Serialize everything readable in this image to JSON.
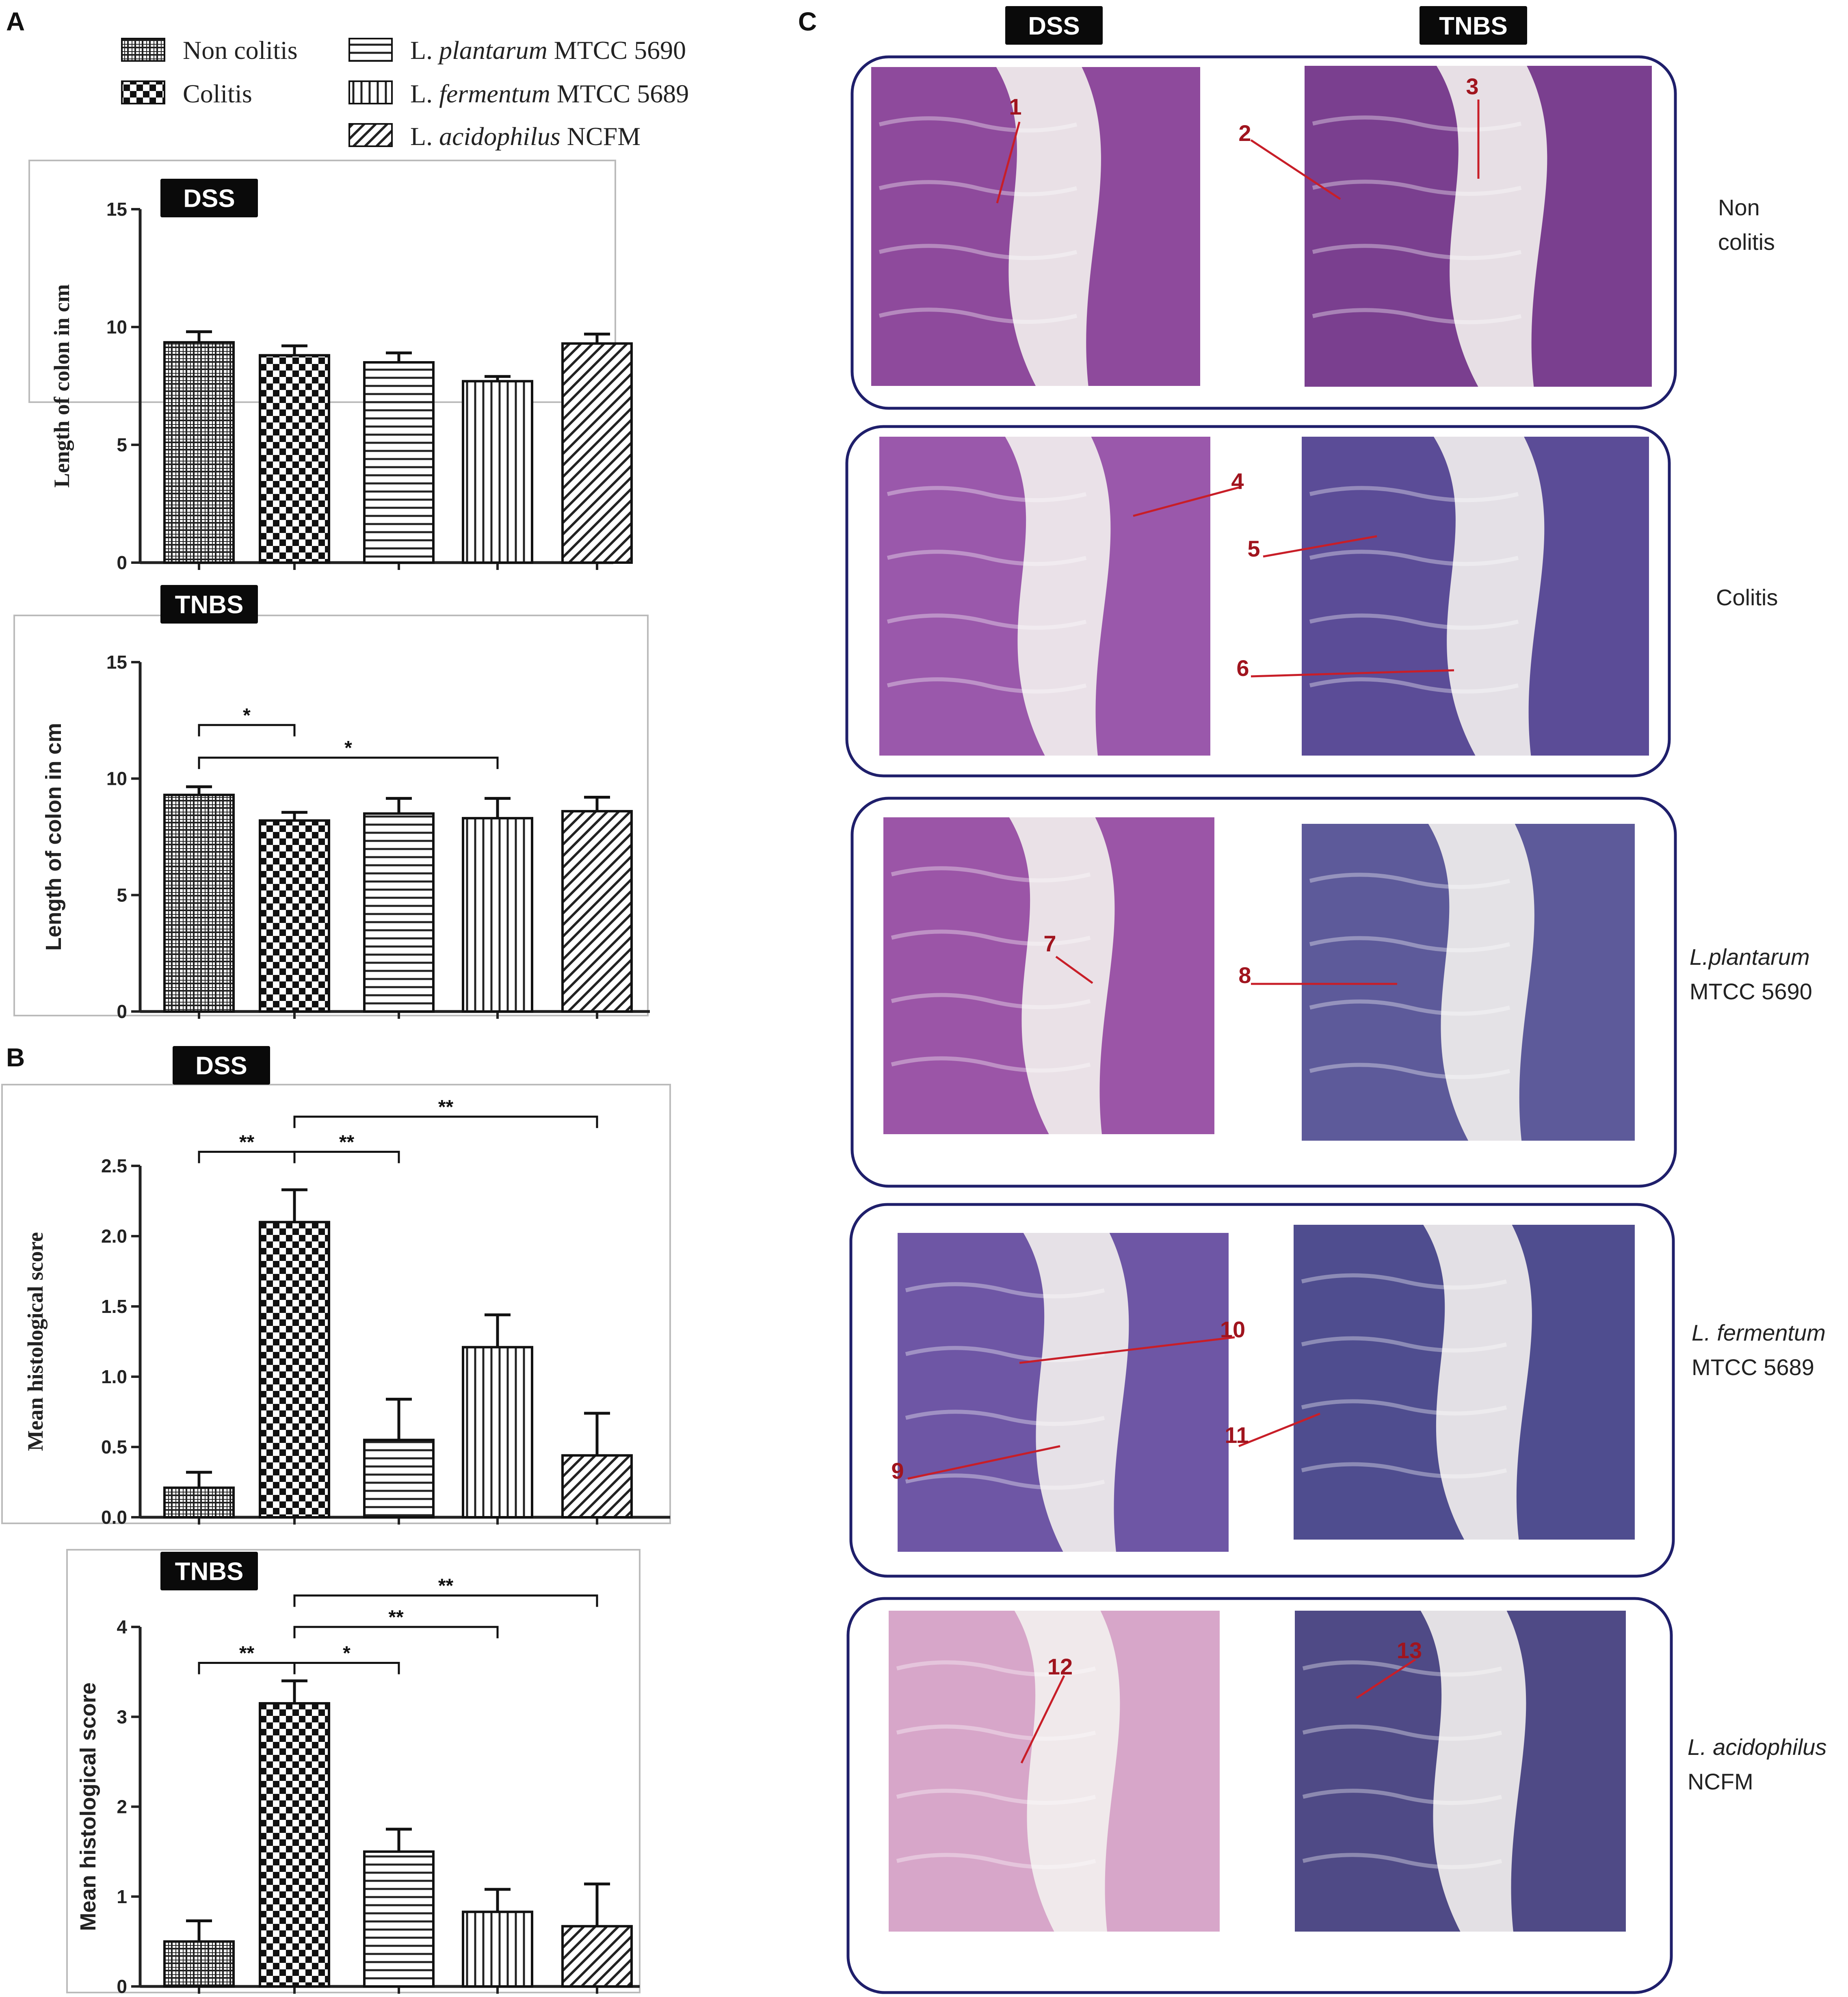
{
  "panels": {
    "A": "A",
    "B": "B",
    "C": "C"
  },
  "legend": [
    {
      "genus": "Non colitis",
      "species": "",
      "strain": "",
      "pattern": "pat-grid"
    },
    {
      "genus": "Colitis",
      "species": "",
      "strain": "",
      "pattern": "pat-check"
    },
    {
      "genus": "L.",
      "species": "plantarum",
      "strain": "MTCC 5690",
      "pattern": "pat-hlines"
    },
    {
      "genus": "L.",
      "species": "fermentum",
      "strain": "MTCC 5689",
      "pattern": "pat-vlines"
    },
    {
      "genus": "L.",
      "species": "acidophilus",
      "strain": "NCFM",
      "pattern": "pat-diag"
    }
  ],
  "chart_data": [
    {
      "id": "A-DSS",
      "type": "bar",
      "badge": "DSS",
      "ylabel": "Length of colon in cm",
      "ylim": [
        0,
        15
      ],
      "yticks": [
        "0",
        "5",
        "10",
        "15"
      ],
      "categories": [
        "Non colitis",
        "Colitis",
        "L. plantarum MTCC 5690",
        "L. fermentum MTCC 5689",
        "L. acidophilus NCFM"
      ],
      "values": [
        9.35,
        8.8,
        8.5,
        7.7,
        9.3
      ],
      "errors": [
        0.45,
        0.4,
        0.4,
        0.2,
        0.4
      ],
      "significance": []
    },
    {
      "id": "A-TNBS",
      "type": "bar",
      "badge": "TNBS",
      "ylabel": "Length of colon in cm",
      "ylim": [
        0,
        15
      ],
      "yticks": [
        "0",
        "5",
        "10",
        "15"
      ],
      "categories": [
        "Non colitis",
        "Colitis",
        "L. plantarum MTCC 5690",
        "L. fermentum MTCC 5689",
        "L. acidophilus NCFM"
      ],
      "values": [
        9.3,
        8.2,
        8.5,
        8.3,
        8.6
      ],
      "errors": [
        0.35,
        0.35,
        0.65,
        0.85,
        0.6
      ],
      "significance": [
        {
          "from": 0,
          "to": 1,
          "y": 12.3,
          "label": "*"
        },
        {
          "from": 0,
          "to": 3,
          "y": 10.9,
          "label": "*"
        }
      ]
    },
    {
      "id": "B-DSS",
      "type": "bar",
      "badge": "DSS",
      "ylabel": "Mean histological score",
      "ylim": [
        0,
        2.5
      ],
      "yticks": [
        "0.0",
        "0.5",
        "1.0",
        "1.5",
        "2.0",
        "2.5"
      ],
      "categories": [
        "Non colitis",
        "Colitis",
        "L. plantarum MTCC 5690",
        "L. fermentum MTCC 5689",
        "L. acidophilus NCFM"
      ],
      "values": [
        0.21,
        2.1,
        0.55,
        1.21,
        0.44
      ],
      "errors": [
        0.11,
        0.23,
        0.29,
        0.23,
        0.3
      ],
      "significance": [
        {
          "from": 0,
          "to": 1,
          "y": 2.6,
          "label": "**"
        },
        {
          "from": 1,
          "to": 2,
          "y": 2.6,
          "label": "**"
        },
        {
          "from": 1,
          "to": 4,
          "y": 2.85,
          "label": "**"
        }
      ]
    },
    {
      "id": "B-TNBS",
      "type": "bar",
      "badge": "TNBS",
      "ylabel": "Mean histological score",
      "ylim": [
        0,
        4
      ],
      "yticks": [
        "0",
        "1",
        "2",
        "3",
        "4"
      ],
      "categories": [
        "Non colitis",
        "Colitis",
        "L. plantarum MTCC 5690",
        "L. fermentum MTCC 5689",
        "L. acidophilus NCFM"
      ],
      "values": [
        0.5,
        3.15,
        1.5,
        0.83,
        0.67
      ],
      "errors": [
        0.23,
        0.25,
        0.25,
        0.25,
        0.47
      ],
      "significance": [
        {
          "from": 0,
          "to": 1,
          "y": 3.6,
          "label": "**"
        },
        {
          "from": 1,
          "to": 2,
          "y": 3.6,
          "label": "*"
        },
        {
          "from": 1,
          "to": 3,
          "y": 4.0,
          "label": "**"
        },
        {
          "from": 1,
          "to": 4,
          "y": 4.35,
          "label": "**"
        }
      ]
    }
  ],
  "histology": {
    "columns": [
      "DSS",
      "TNBS"
    ],
    "rows": [
      {
        "label_lines": [
          "Non",
          "colitis"
        ],
        "italic": false,
        "colors": [
          "#8e4a9c",
          "#7a3f8f"
        ],
        "arrows": [
          "1",
          "2",
          "3"
        ]
      },
      {
        "label_lines": [
          "Colitis"
        ],
        "italic": false,
        "colors": [
          "#9a58ab",
          "#5b4c97"
        ],
        "arrows": [
          "4",
          "5",
          "6"
        ]
      },
      {
        "label_lines": [
          "L.plantarum",
          "MTCC 5690"
        ],
        "italic": true,
        "colors": [
          "#9b55a7",
          "#5d5a9a"
        ],
        "arrows": [
          "7",
          "8"
        ]
      },
      {
        "label_lines": [
          "L. fermentum",
          "MTCC 5689"
        ],
        "italic": true,
        "colors": [
          "#6e56a5",
          "#4f4d8f"
        ],
        "arrows": [
          "10",
          "9",
          "11"
        ]
      },
      {
        "label_lines": [
          "L. acidophilus",
          "NCFM"
        ],
        "italic": true,
        "colors": [
          "#d7a6c9",
          "#4f4a86"
        ],
        "arrows": [
          "12",
          "13"
        ]
      }
    ]
  }
}
